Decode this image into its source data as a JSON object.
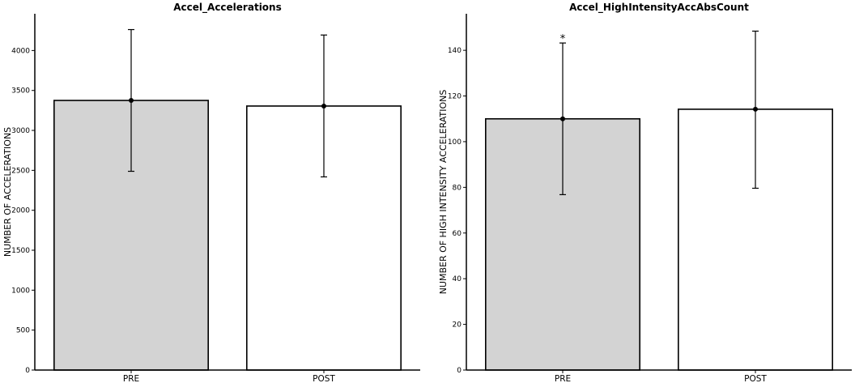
{
  "chart_data": [
    {
      "type": "bar",
      "title": "Accel_Accelerations",
      "xlabel": "",
      "ylabel": "NUMBER OF ACCELERATIONS",
      "categories": [
        "PRE",
        "POST"
      ],
      "values": [
        3375,
        3305
      ],
      "error_low": [
        2488,
        2418
      ],
      "error_high": [
        4262,
        4194
      ],
      "ylim": [
        0,
        4460
      ],
      "yticks": [
        0,
        500,
        1000,
        1500,
        2000,
        2500,
        3000,
        3500,
        4000
      ],
      "bar_colors": [
        "#d3d3d3",
        "#ffffff"
      ],
      "annotations": [],
      "grid": false
    },
    {
      "type": "bar",
      "title": "Accel_HighIntensityAccAbsCount",
      "xlabel": "",
      "ylabel": "NUMBER OF HIGH INTENSITY ACCELERATIONS",
      "categories": [
        "PRE",
        "POST"
      ],
      "values": [
        110,
        114.2
      ],
      "error_low": [
        76.8,
        79.6
      ],
      "error_high": [
        143.2,
        148.4
      ],
      "ylim": [
        0,
        156
      ],
      "yticks": [
        0,
        20,
        40,
        60,
        80,
        100,
        120,
        140
      ],
      "bar_colors": [
        "#d3d3d3",
        "#ffffff"
      ],
      "annotations": [
        {
          "category": "PRE",
          "text": "*"
        }
      ],
      "grid": false
    }
  ]
}
